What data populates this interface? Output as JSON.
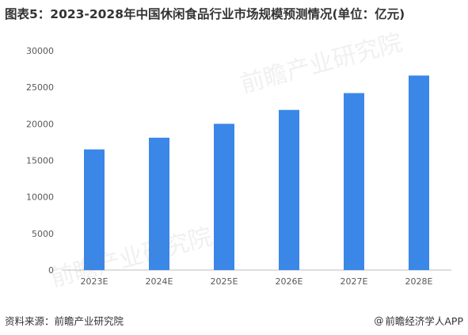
{
  "title": "图表5：2023-2028年中国休闲食品行业市场规模预测情况(单位：亿元)",
  "footer": {
    "source": "资料来源：前瞻产业研究院",
    "brand_symbol": "@",
    "brand": "前瞻经济学人APP"
  },
  "watermark": {
    "text": "前瞻产业研究院"
  },
  "colors": {
    "bar": "#3a87e7",
    "axis": "#bfbfbf",
    "tick_text": "#595959"
  },
  "chart_data": {
    "type": "bar",
    "title": "",
    "xlabel": "",
    "ylabel": "",
    "categories": [
      "2023E",
      "2024E",
      "2025E",
      "2026E",
      "2027E",
      "2028E"
    ],
    "values": [
      16500,
      18100,
      20000,
      21900,
      24200,
      26600
    ],
    "ylim": [
      0,
      30000
    ],
    "yticks": [
      0,
      5000,
      10000,
      15000,
      20000,
      25000,
      30000
    ],
    "grid": false,
    "legend": "none"
  }
}
